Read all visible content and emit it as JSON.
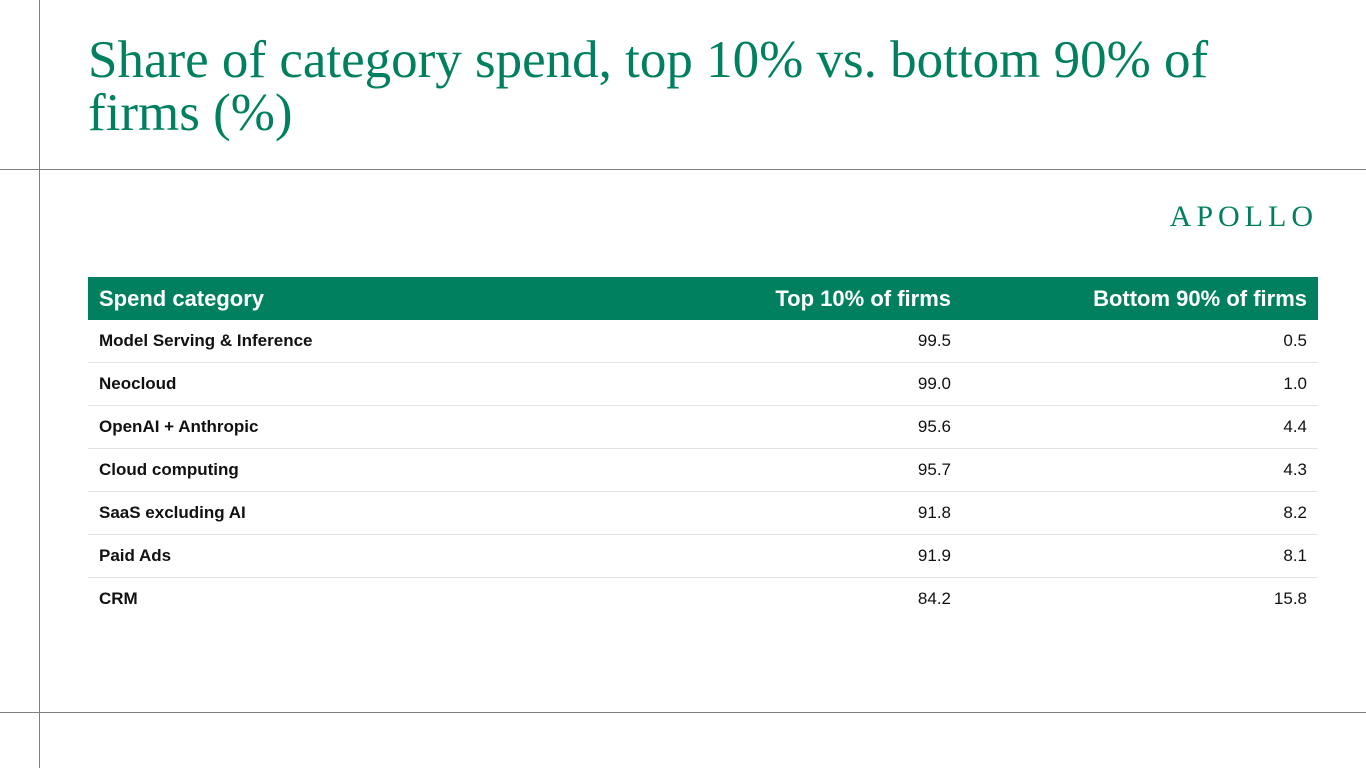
{
  "title": "Share of category spend, top 10% vs. bottom 90% of firms (%)",
  "logo": "APOLLO",
  "colors": {
    "accent": "#00805f",
    "rule": "#7f7f7f"
  },
  "table": {
    "headers": [
      "Spend category",
      "Top 10% of firms",
      "Bottom 90% of firms"
    ],
    "rows": [
      [
        "Model Serving & Inference",
        "99.5",
        "0.5"
      ],
      [
        "Neocloud",
        "99.0",
        "1.0"
      ],
      [
        "OpenAI + Anthropic",
        "95.6",
        "4.4"
      ],
      [
        "Cloud computing",
        "95.7",
        "4.3"
      ],
      [
        "SaaS excluding AI",
        "91.8",
        "8.2"
      ],
      [
        "Paid Ads",
        "91.9",
        "8.1"
      ],
      [
        "CRM",
        "84.2",
        "15.8"
      ]
    ]
  }
}
